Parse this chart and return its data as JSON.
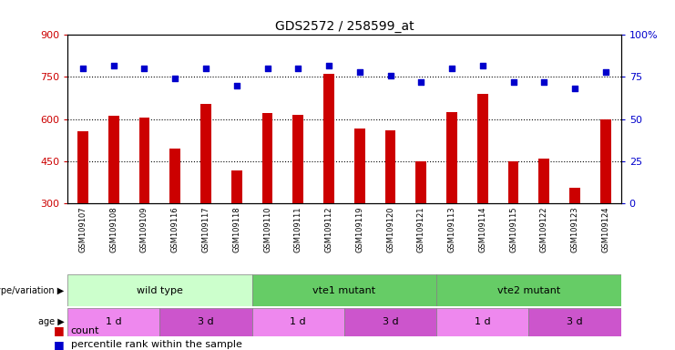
{
  "title": "GDS2572 / 258599_at",
  "samples": [
    "GSM109107",
    "GSM109108",
    "GSM109109",
    "GSM109116",
    "GSM109117",
    "GSM109118",
    "GSM109110",
    "GSM109111",
    "GSM109112",
    "GSM109119",
    "GSM109120",
    "GSM109121",
    "GSM109113",
    "GSM109114",
    "GSM109115",
    "GSM109122",
    "GSM109123",
    "GSM109124"
  ],
  "counts": [
    555,
    610,
    605,
    495,
    655,
    415,
    620,
    615,
    760,
    565,
    560,
    450,
    625,
    690,
    450,
    460,
    355,
    600
  ],
  "percentile_ranks": [
    80,
    82,
    80,
    74,
    80,
    70,
    80,
    80,
    82,
    78,
    76,
    72,
    80,
    82,
    72,
    72,
    68,
    78
  ],
  "ylim_left": [
    300,
    900
  ],
  "ylim_right": [
    0,
    100
  ],
  "yticks_left": [
    300,
    450,
    600,
    750,
    900
  ],
  "yticks_right": [
    0,
    25,
    50,
    75,
    100
  ],
  "ytick_labels_right": [
    "0",
    "25",
    "50",
    "75",
    "100%"
  ],
  "bar_color": "#cc0000",
  "dot_color": "#0000cc",
  "background_color": "#ffffff",
  "bar_width": 0.35,
  "geno_spans": [
    {
      "label": "wild type",
      "start": 0,
      "end": 5,
      "color": "#ccffcc"
    },
    {
      "label": "vte1 mutant",
      "start": 6,
      "end": 11,
      "color": "#66cc66"
    },
    {
      "label": "vte2 mutant",
      "start": 12,
      "end": 17,
      "color": "#66cc66"
    }
  ],
  "age_spans": [
    {
      "label": "1 d",
      "start": 0,
      "end": 2,
      "color": "#ee88ee"
    },
    {
      "label": "3 d",
      "start": 3,
      "end": 5,
      "color": "#cc55cc"
    },
    {
      "label": "1 d",
      "start": 6,
      "end": 8,
      "color": "#ee88ee"
    },
    {
      "label": "3 d",
      "start": 9,
      "end": 11,
      "color": "#cc55cc"
    },
    {
      "label": "1 d",
      "start": 12,
      "end": 14,
      "color": "#ee88ee"
    },
    {
      "label": "3 d",
      "start": 15,
      "end": 17,
      "color": "#cc55cc"
    }
  ],
  "xlabel_color": "#cc0000",
  "ylabel_right_color": "#0000cc",
  "legend_count_color": "#cc0000",
  "legend_dot_color": "#0000cc",
  "grid_yticks": [
    450,
    600,
    750
  ],
  "tick_bg_color": "#d8d8d8"
}
